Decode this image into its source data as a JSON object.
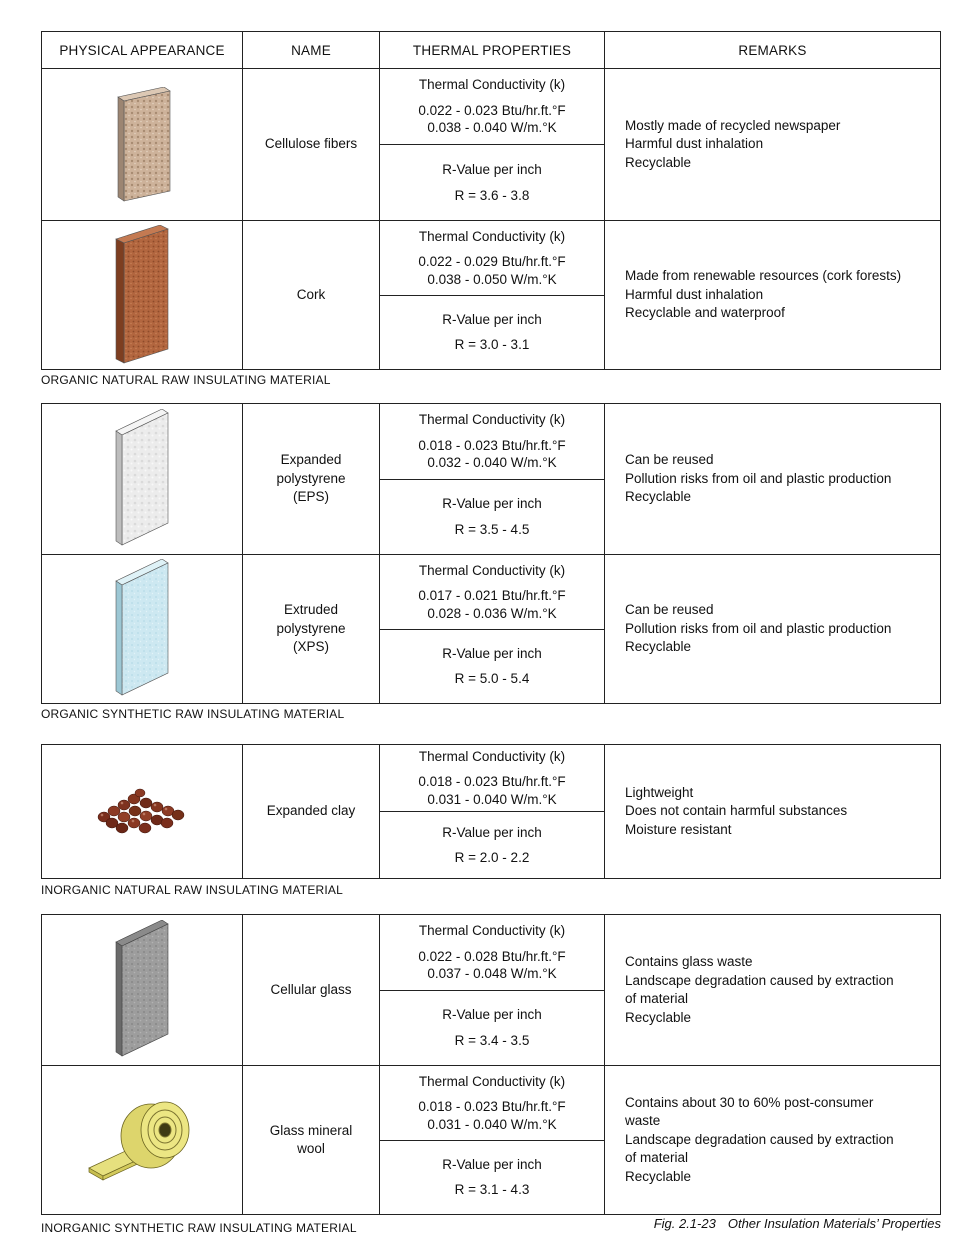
{
  "headers": {
    "appearance": "PHYSICAL APPEARANCE",
    "name": "NAME",
    "thermal": "THERMAL PROPERTIES",
    "remarks": "REMARKS"
  },
  "groups": [
    {
      "caption": "ORGANIC NATURAL RAW INSULATING MATERIAL",
      "materials": [
        {
          "name": "Cellulose fibers",
          "k_label": "Thermal Conductivity (k)",
          "k1": "0.022 - 0.023 Btu/hr.ft.°F",
          "k2": "0.038 - 0.040 W/m.°K",
          "r_label": "R-Value per inch",
          "r": "R = 3.6 - 3.8",
          "remarks": [
            "Mostly made of recycled newspaper",
            "Harmful dust inhalation",
            "Recyclable"
          ],
          "image": "cellulose-board"
        },
        {
          "name": "Cork",
          "k_label": "Thermal Conductivity (k)",
          "k1": "0.022 - 0.029 Btu/hr.ft.°F",
          "k2": "0.038 - 0.050 W/m.°K",
          "r_label": "R-Value per inch",
          "r": "R = 3.0 - 3.1",
          "remarks": [
            "Made from renewable resources (cork forests)",
            "Harmful dust inhalation",
            "Recyclable and waterproof"
          ],
          "image": "cork-board"
        }
      ]
    },
    {
      "caption": "ORGANIC SYNTHETIC RAW INSULATING MATERIAL",
      "materials": [
        {
          "name_lines": [
            "Expanded",
            "polystyrene",
            "(EPS)"
          ],
          "k_label": "Thermal Conductivity (k)",
          "k1": "0.018 - 0.023 Btu/hr.ft.°F",
          "k2": "0.032 - 0.040 W/m.°K",
          "r_label": "R-Value per inch",
          "r": "R = 3.5 - 4.5",
          "remarks": [
            "Can be reused",
            "Pollution risks from oil and plastic production",
            "Recyclable"
          ],
          "image": "eps-board"
        },
        {
          "name_lines": [
            "Extruded",
            "polystyrene",
            "(XPS)"
          ],
          "k_label": "Thermal Conductivity (k)",
          "k1": "0.017 - 0.021 Btu/hr.ft.°F",
          "k2": "0.028 - 0.036 W/m.°K",
          "r_label": "R-Value per inch",
          "r": "R = 5.0 - 5.4",
          "remarks": [
            "Can be reused",
            "Pollution risks from oil and plastic production",
            "Recyclable"
          ],
          "image": "xps-board"
        }
      ]
    },
    {
      "caption": "INORGANIC NATURAL RAW INSULATING MATERIAL",
      "materials": [
        {
          "name": "Expanded clay",
          "k_label": "Thermal Conductivity (k)",
          "k1": "0.018 - 0.023 Btu/hr.ft.°F",
          "k2": "0.031 - 0.040 W/m.°K",
          "r_label": "R-Value per inch",
          "r": "R = 2.0 - 2.2",
          "remarks": [
            "Lightweight",
            "Does not contain harmful substances",
            "Moisture resistant"
          ],
          "image": "clay-pellets"
        }
      ]
    },
    {
      "caption": "INORGANIC SYNTHETIC RAW INSULATING MATERIAL",
      "materials": [
        {
          "name": "Cellular glass",
          "k_label": "Thermal Conductivity (k)",
          "k1": "0.022 - 0.028 Btu/hr.ft.°F",
          "k2": "0.037 - 0.048 W/m.°K",
          "r_label": "R-Value per inch",
          "r": "R = 3.4 - 3.5",
          "remarks": [
            "Contains glass waste",
            "Landscape degradation caused by extraction",
            "of material",
            "Recyclable"
          ],
          "image": "cellular-glass-board"
        },
        {
          "name_lines": [
            "Glass mineral",
            "wool"
          ],
          "k_label": "Thermal Conductivity (k)",
          "k1": "0.018 - 0.023 Btu/hr.ft.°F",
          "k2": "0.031 - 0.040 W/m.°K",
          "r_label": "R-Value per inch",
          "r": "R = 3.1 - 4.3",
          "remarks": [
            "Contains about 30 to 60% post-consumer",
            "waste",
            "Landscape degradation caused by extraction",
            "of material",
            "Recyclable"
          ],
          "image": "glass-wool-roll"
        }
      ]
    }
  ],
  "figure": {
    "number": "Fig. 2.1-23",
    "title": "Other Insulation Materials’ Properties"
  },
  "colors": {
    "cellulose": "#c9ae95",
    "cork": "#b0643f",
    "eps": "#eeeeee",
    "xps": "#cfe9f1",
    "cellular_glass": "#9a9a9a",
    "glass_wool": "#e0d97a",
    "clay": "#7a2e1c"
  }
}
